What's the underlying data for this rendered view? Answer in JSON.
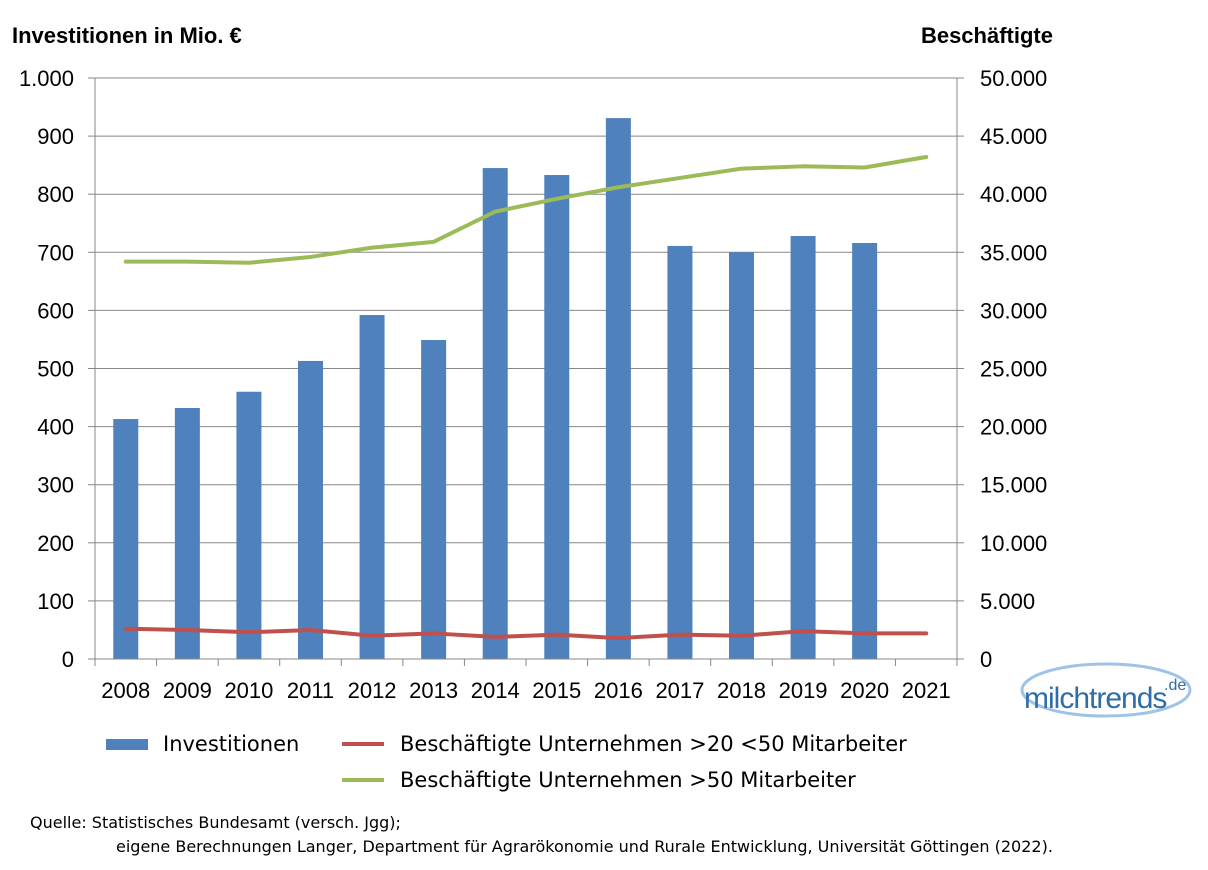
{
  "chart_data": {
    "type": "bar",
    "left_axis_title": "Investitionen in Mio. €",
    "right_axis_title": "Beschäftigte",
    "categories": [
      "2008",
      "2009",
      "2010",
      "2011",
      "2012",
      "2013",
      "2014",
      "2015",
      "2016",
      "2017",
      "2018",
      "2019",
      "2020",
      "2021"
    ],
    "y_left": {
      "lim": [
        0,
        1000
      ],
      "ticks": [
        0,
        100,
        200,
        300,
        400,
        500,
        600,
        700,
        800,
        900,
        1000
      ],
      "tick_labels": [
        "0",
        "100",
        "200",
        "300",
        "400",
        "500",
        "600",
        "700",
        "800",
        "900",
        "1.000"
      ]
    },
    "y_right": {
      "lim": [
        0,
        50000
      ],
      "ticks": [
        0,
        5000,
        10000,
        15000,
        20000,
        25000,
        30000,
        35000,
        40000,
        45000,
        50000
      ],
      "tick_labels": [
        "0",
        "5.000",
        "10.000",
        "15.000",
        "20.000",
        "25.000",
        "30.000",
        "35.000",
        "40.000",
        "45.000",
        "50.000"
      ]
    },
    "series": [
      {
        "name": "Investitionen",
        "kind": "bar",
        "axis": "left",
        "color": "#4f81bd",
        "values": [
          413,
          432,
          460,
          513,
          592,
          549,
          845,
          833,
          931,
          711,
          700,
          728,
          716,
          null
        ]
      },
      {
        "name": "Beschäftigte Unternehmen >20 <50 Mitarbeiter",
        "kind": "line",
        "axis": "right",
        "color": "#c0504d",
        "values": [
          2600,
          2500,
          2300,
          2500,
          2000,
          2200,
          1900,
          2100,
          1800,
          2100,
          2000,
          2400,
          2200,
          2200
        ]
      },
      {
        "name": "Beschäftigte Unternehmen >50 Mitarbeiter",
        "kind": "line",
        "axis": "right",
        "color": "#9bbb59",
        "values": [
          34200,
          34200,
          34100,
          34600,
          35400,
          35900,
          38500,
          39600,
          40600,
          41400,
          42200,
          42400,
          42300,
          43200
        ]
      }
    ],
    "grid": true,
    "legend_position": "bottom"
  },
  "source": {
    "line1": "Quelle: Statistisches Bundesamt (versch. Jgg);",
    "line2": "eigene Berechnungen Langer, Department für Agrarökonomie und Rurale Entwicklung, Universität Göttingen (2022)."
  },
  "logo": {
    "text": "milchtrends",
    "suffix": ".de"
  }
}
